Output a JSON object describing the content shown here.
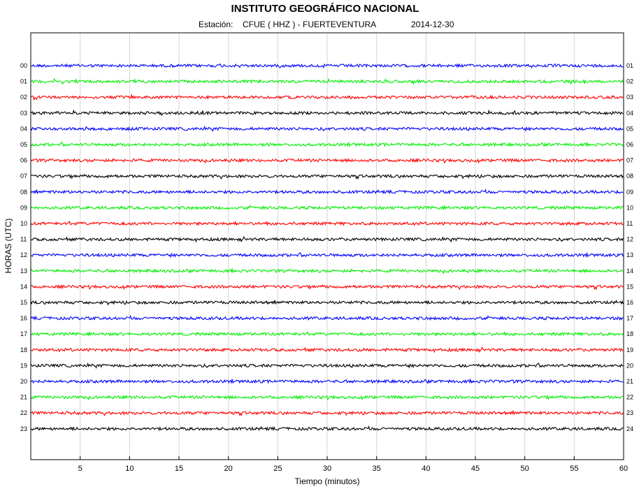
{
  "chart_data": {
    "type": "line",
    "title": "INSTITUTO GEOGRÁFICO NACIONAL",
    "subtitle": {
      "station_label": "Estación:",
      "station": "CFUE ( HHZ ) - FUERTEVENTURA",
      "date": "2014-12-30"
    },
    "xlabel": "Tiempo (minutos)",
    "ylabel": "HORAS (UTC)",
    "xlim": [
      0,
      60
    ],
    "x_ticks": [
      5,
      10,
      15,
      20,
      25,
      30,
      35,
      40,
      45,
      50,
      55,
      60
    ],
    "grid": "vertical",
    "series_colors": [
      "#0000ff",
      "#00ee00",
      "#ff0000",
      "#000000"
    ],
    "hours_left": [
      "00",
      "01",
      "02",
      "03",
      "04",
      "05",
      "06",
      "07",
      "08",
      "09",
      "10",
      "11",
      "12",
      "13",
      "14",
      "15",
      "16",
      "17",
      "18",
      "19",
      "20",
      "21",
      "22",
      "23"
    ],
    "hours_right": [
      "01",
      "02",
      "03",
      "04",
      "05",
      "06",
      "07",
      "08",
      "09",
      "10",
      "11",
      "12",
      "13",
      "14",
      "15",
      "16",
      "17",
      "18",
      "19",
      "20",
      "21",
      "22",
      "23",
      "24"
    ]
  }
}
